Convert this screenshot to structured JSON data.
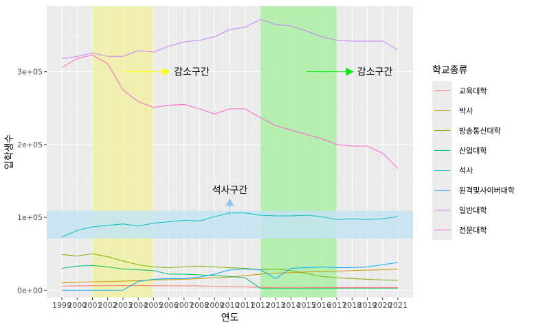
{
  "chart_data": {
    "type": "line",
    "xlabel": "연도",
    "ylabel": "입학생수",
    "x": [
      1999,
      2000,
      2001,
      2002,
      2003,
      2004,
      2005,
      2006,
      2007,
      2008,
      2009,
      2010,
      2011,
      2012,
      2013,
      2014,
      2015,
      2016,
      2017,
      2018,
      2019,
      2020,
      2021
    ],
    "xticks": [
      "1999",
      "2000",
      "2001",
      "2002",
      "2003",
      "2004",
      "2005",
      "2006",
      "2007",
      "2008",
      "2009",
      "2010",
      "2011",
      "2012",
      "2013",
      "2014",
      "2015",
      "2016",
      "2017",
      "2018",
      "2019",
      "2020",
      "2021"
    ],
    "xlim": [
      1999,
      2021
    ],
    "ylim": [
      -10000,
      390000
    ],
    "yticks": [
      {
        "value": 0,
        "label": "0e+00"
      },
      {
        "value": 100000,
        "label": "1e+05"
      },
      {
        "value": 200000,
        "label": "2e+05"
      },
      {
        "value": 300000,
        "label": "3e+05"
      }
    ],
    "grid": true,
    "legend": {
      "title": "학교종류",
      "position": "right"
    },
    "series": [
      {
        "name": "교육대학",
        "color": "#F8766D",
        "values": [
          5500,
          6000,
          6200,
          6200,
          6300,
          6300,
          6200,
          6000,
          6000,
          6000,
          5000,
          4500,
          4500,
          4000,
          3900,
          3900,
          3900,
          3800,
          3800,
          3800,
          3800,
          3800,
          3800
        ]
      },
      {
        "name": "박사",
        "color": "#CD9600",
        "values": [
          10000,
          11000,
          11500,
          12000,
          12500,
          13000,
          14000,
          14500,
          15000,
          16000,
          17000,
          18000,
          20000,
          22000,
          23500,
          24000,
          25000,
          25500,
          26000,
          27000,
          27500,
          28000,
          29000
        ]
      },
      {
        "name": "방송통신대학",
        "color": "#7CAE00",
        "values": [
          49000,
          47000,
          50000,
          46000,
          40000,
          35000,
          32000,
          31000,
          32000,
          33000,
          32000,
          31000,
          30000,
          28000,
          29000,
          27000,
          23000,
          19000,
          17000,
          16000,
          15000,
          14000,
          13500
        ]
      },
      {
        "name": "산업대학",
        "color": "#00BE67",
        "values": [
          30000,
          33000,
          34000,
          32000,
          29000,
          28000,
          27000,
          22000,
          22000,
          21000,
          20000,
          19000,
          17000,
          2500,
          2500,
          2500,
          2500,
          2500,
          2500,
          2500,
          2500,
          2500,
          2500
        ]
      },
      {
        "name": "석사",
        "color": "#00BFC4",
        "values": [
          73000,
          82000,
          87000,
          89000,
          91000,
          88000,
          92000,
          94000,
          96000,
          95000,
          101000,
          106000,
          106000,
          103000,
          102000,
          102000,
          103000,
          101000,
          97000,
          98000,
          97000,
          98000,
          101000
        ]
      },
      {
        "name": "원격및사이버대학",
        "color": "#00A9FF",
        "values": [
          0,
          0,
          0,
          0,
          0,
          12000,
          15000,
          16000,
          16000,
          18000,
          22000,
          28000,
          29000,
          28000,
          16000,
          30000,
          31000,
          32000,
          31000,
          31000,
          32000,
          35000,
          38000
        ]
      },
      {
        "name": "일반대학",
        "color": "#C77CFF",
        "values": [
          318000,
          321000,
          326000,
          321000,
          321000,
          329000,
          327000,
          335000,
          341000,
          343000,
          348000,
          358000,
          361000,
          372000,
          365000,
          363000,
          356000,
          348000,
          343000,
          342000,
          342000,
          342000,
          330000
        ]
      },
      {
        "name": "전문대학",
        "color": "#FF61CC",
        "values": [
          306000,
          318000,
          323000,
          311000,
          275000,
          259000,
          251000,
          254000,
          255000,
          249000,
          242000,
          249000,
          249000,
          237000,
          226000,
          220000,
          214000,
          208000,
          200000,
          198000,
          198000,
          188000,
          167000
        ]
      }
    ],
    "highlights": [
      {
        "type": "vertical-band",
        "from": 2001,
        "to": 2005,
        "color": "#F0F0A0"
      },
      {
        "type": "vertical-band",
        "from": 2012,
        "to": 2017,
        "color": "#A8F0A0"
      },
      {
        "type": "horizontal-band",
        "from": 71000,
        "to": 109000,
        "color": "#C4E4F2"
      }
    ],
    "annotations": [
      {
        "text": "감소구간",
        "x": 2007.5,
        "y": 300000,
        "arrow_from": [
          2003,
          300000
        ],
        "arrow_to": [
          2006.1,
          300000
        ],
        "arrow_color": "#FFFF00"
      },
      {
        "text": "감소구간",
        "x": 2019.5,
        "y": 300000,
        "arrow_from": [
          2015,
          300000
        ],
        "arrow_to": [
          2018.1,
          300000
        ],
        "arrow_color": "#00EE00"
      },
      {
        "text": "석사구간",
        "x": 2010,
        "y": 138000,
        "arrow_from": [
          2010,
          100000
        ],
        "arrow_to": [
          2010,
          126000
        ],
        "arrow_color": "#8EC8E8"
      }
    ]
  }
}
